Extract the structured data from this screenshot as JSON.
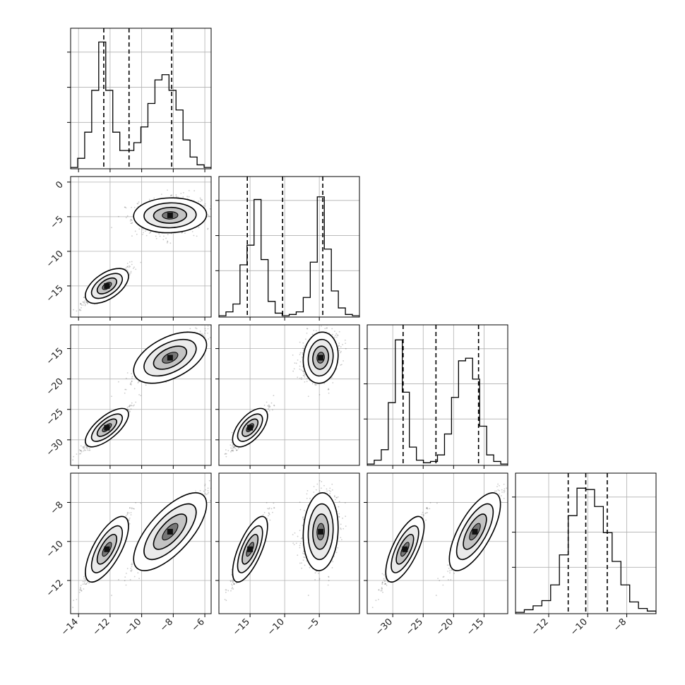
{
  "chart_data": {
    "type": "corner",
    "grid": true,
    "colors": {
      "contour": "#000000",
      "points": "#333333",
      "grid": "#b0b0b0",
      "frame": "#000000"
    },
    "params": [
      {
        "axis_ticks": [
          -14,
          -12,
          -10,
          -8,
          -6
        ],
        "tick_labels": [
          "−14",
          "−12",
          "−10",
          "−8",
          "−6"
        ],
        "range": [
          -14.5,
          -5.6
        ],
        "quantiles": [
          -12.4,
          -10.8,
          -8.1
        ],
        "hist": [
          0.01,
          0.08,
          0.28,
          0.6,
          0.97,
          0.6,
          0.28,
          0.14,
          0.14,
          0.2,
          0.32,
          0.5,
          0.68,
          0.72,
          0.6,
          0.45,
          0.22,
          0.09,
          0.03,
          0.01
        ]
      },
      {
        "axis_ticks": [
          -15,
          -10,
          -5
        ],
        "tick_labels": [
          "−15",
          "−10",
          "−5"
        ],
        "y_ticks": [
          0,
          -5,
          -10,
          -15
        ],
        "y_tick_labels": [
          "0",
          "−5",
          "−10",
          "−15"
        ],
        "range": [
          -19.5,
          0.8
        ],
        "quantiles": [
          -15.4,
          -10.3,
          -4.5
        ],
        "hist": [
          0.01,
          0.04,
          0.1,
          0.4,
          0.55,
          0.9,
          0.44,
          0.12,
          0.03,
          0.01,
          0.02,
          0.04,
          0.15,
          0.42,
          0.92,
          0.52,
          0.2,
          0.07,
          0.02,
          0.01
        ]
      },
      {
        "axis_ticks": [
          -30,
          -25,
          -20,
          -15
        ],
        "tick_labels": [
          "−30",
          "−25",
          "−20",
          "−15"
        ],
        "y_ticks": [
          -15,
          -20,
          -25,
          -30
        ],
        "y_tick_labels": [
          "−15",
          "−20",
          "−25",
          "−30"
        ],
        "range": [
          -34.2,
          -11.1
        ],
        "quantiles": [
          -28.3,
          -22.9,
          -15.9
        ],
        "hist": [
          0.01,
          0.04,
          0.12,
          0.48,
          0.96,
          0.56,
          0.14,
          0.04,
          0.02,
          0.03,
          0.08,
          0.24,
          0.52,
          0.8,
          0.82,
          0.66,
          0.3,
          0.08,
          0.03,
          0.01
        ]
      },
      {
        "axis_ticks": [
          -12,
          -10,
          -8
        ],
        "tick_labels": [
          "−12",
          "−10",
          "−8"
        ],
        "y_ticks": [
          -8,
          -10,
          -12
        ],
        "y_tick_labels": [
          "−8",
          "−10",
          "−12"
        ],
        "range": [
          -13.7,
          -6.5
        ],
        "quantiles": [
          -11.0,
          -10.1,
          -9.0
        ],
        "hist": [
          0.01,
          0.03,
          0.06,
          0.1,
          0.22,
          0.45,
          0.75,
          0.96,
          0.95,
          0.82,
          0.62,
          0.4,
          0.22,
          0.09,
          0.04,
          0.02
        ]
      }
    ],
    "clusters": [
      {
        "mean": [
          -12.2,
          -15.0,
          -28.0,
          -10.4
        ],
        "sd": [
          0.65,
          1.2,
          1.5,
          0.8
        ],
        "corr": [
          [
            1,
            0.55,
            0.7,
            0.7
          ],
          [
            0.55,
            1,
            0.6,
            0.7
          ],
          [
            0.7,
            0.6,
            1,
            0.7
          ],
          [
            0.7,
            0.7,
            0.7,
            1
          ]
        ]
      },
      {
        "mean": [
          -8.2,
          -4.8,
          -16.5,
          -9.5
        ],
        "sd": [
          1.1,
          1.2,
          2.0,
          0.95
        ],
        "corr": [
          [
            1,
            0.05,
            0.5,
            0.7
          ],
          [
            0.05,
            1,
            0.1,
            0.1
          ],
          [
            0.5,
            0.1,
            1,
            0.7
          ],
          [
            0.7,
            0.1,
            0.7,
            1
          ]
        ]
      }
    ]
  }
}
